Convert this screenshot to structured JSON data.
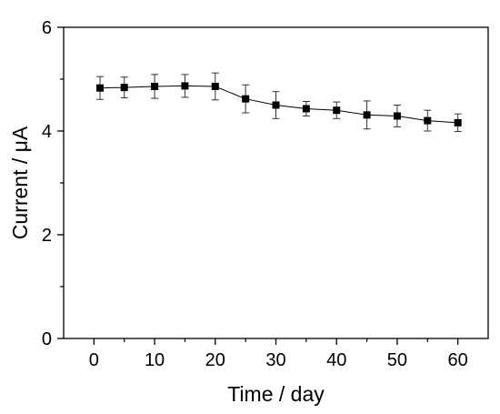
{
  "chart_data": {
    "type": "line",
    "title": "",
    "xlabel": "Time / day",
    "ylabel": "Current / μA",
    "xlim": [
      -5,
      65
    ],
    "ylim": [
      0,
      6
    ],
    "xticks": [
      0,
      10,
      20,
      30,
      40,
      50,
      60
    ],
    "yticks": [
      0,
      2,
      4,
      6
    ],
    "grid": false,
    "marker": "square",
    "series": [
      {
        "x": [
          1,
          5,
          10,
          15,
          20,
          25,
          30,
          35,
          40,
          45,
          50,
          55,
          60
        ],
        "y": [
          4.83,
          4.84,
          4.86,
          4.87,
          4.86,
          4.62,
          4.5,
          4.43,
          4.4,
          4.31,
          4.29,
          4.2,
          4.16
        ],
        "error": [
          0.22,
          0.2,
          0.23,
          0.22,
          0.26,
          0.27,
          0.26,
          0.14,
          0.16,
          0.27,
          0.21,
          0.2,
          0.17
        ]
      }
    ]
  }
}
